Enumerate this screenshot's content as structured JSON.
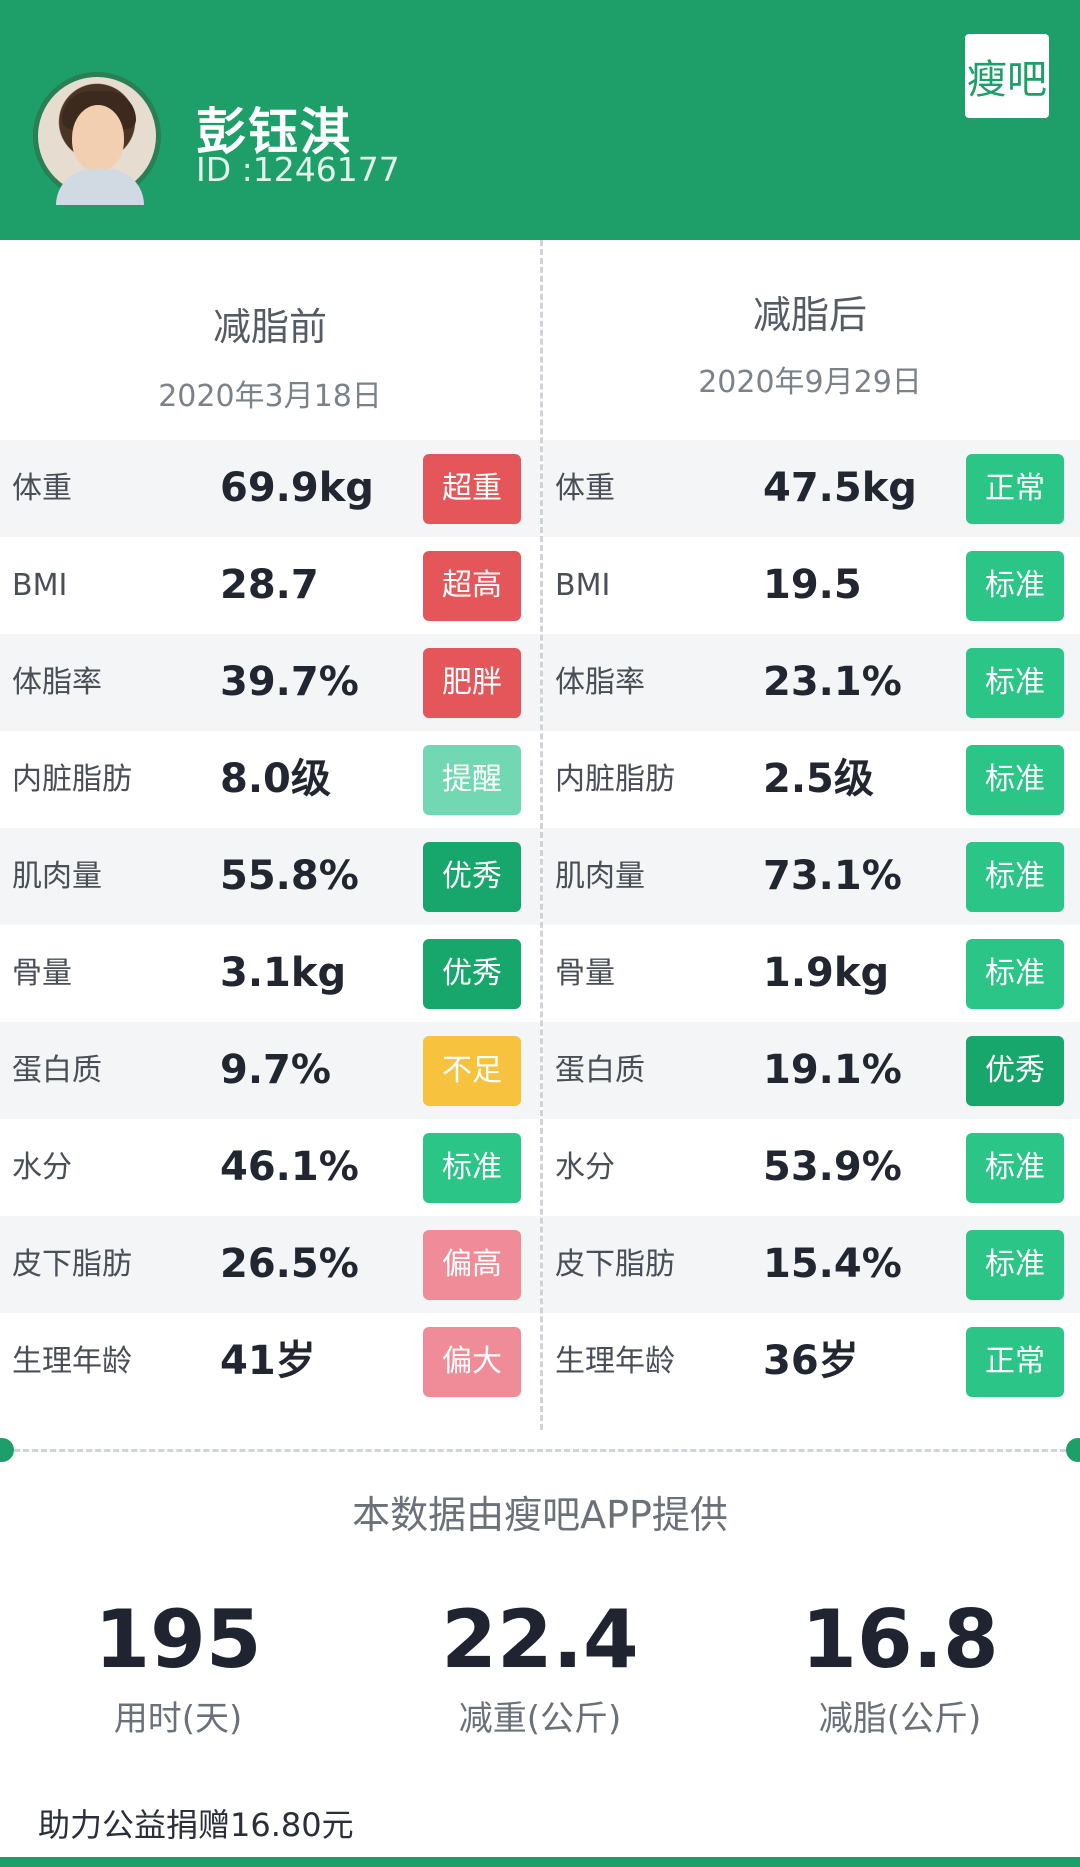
{
  "header": {
    "name": "彭钰淇",
    "user_id": "ID :1246177",
    "logo_text": "瘦吧"
  },
  "before": {
    "title": "减脂前",
    "date": "2020年3月18日",
    "rows": [
      {
        "metric": "体重",
        "value": "69.9kg",
        "badge": "超重",
        "color": "#e5565a"
      },
      {
        "metric": "BMI",
        "value": "28.7",
        "badge": "超高",
        "color": "#e5565a"
      },
      {
        "metric": "体脂率",
        "value": "39.7%",
        "badge": "肥胖",
        "color": "#e5565a"
      },
      {
        "metric": "内脏脂肪",
        "value": "8.0级",
        "badge": "提醒",
        "color": "#72d8b3"
      },
      {
        "metric": "肌肉量",
        "value": "55.8%",
        "badge": "优秀",
        "color": "#17a66c"
      },
      {
        "metric": "骨量",
        "value": "3.1kg",
        "badge": "优秀",
        "color": "#17a66c"
      },
      {
        "metric": "蛋白质",
        "value": "9.7%",
        "badge": "不足",
        "color": "#f7c33e"
      },
      {
        "metric": "水分",
        "value": "46.1%",
        "badge": "标准",
        "color": "#2bc588"
      },
      {
        "metric": "皮下脂肪",
        "value": "26.5%",
        "badge": "偏高",
        "color": "#f08c97"
      },
      {
        "metric": "生理年龄",
        "value": "41岁",
        "badge": "偏大",
        "color": "#f08c97"
      }
    ]
  },
  "after": {
    "title": "减脂后",
    "date": "2020年9月29日",
    "rows": [
      {
        "metric": "体重",
        "value": "47.5kg",
        "badge": "正常",
        "color": "#2bc588"
      },
      {
        "metric": "BMI",
        "value": "19.5",
        "badge": "标准",
        "color": "#2bc588"
      },
      {
        "metric": "体脂率",
        "value": "23.1%",
        "badge": "标准",
        "color": "#2bc588"
      },
      {
        "metric": "内脏脂肪",
        "value": "2.5级",
        "badge": "标准",
        "color": "#2bc588"
      },
      {
        "metric": "肌肉量",
        "value": "73.1%",
        "badge": "标准",
        "color": "#2bc588"
      },
      {
        "metric": "骨量",
        "value": "1.9kg",
        "badge": "标准",
        "color": "#2bc588"
      },
      {
        "metric": "蛋白质",
        "value": "19.1%",
        "badge": "优秀",
        "color": "#17a66c"
      },
      {
        "metric": "水分",
        "value": "53.9%",
        "badge": "标准",
        "color": "#2bc588"
      },
      {
        "metric": "皮下脂肪",
        "value": "15.4%",
        "badge": "标准",
        "color": "#2bc588"
      },
      {
        "metric": "生理年龄",
        "value": "36岁",
        "badge": "正常",
        "color": "#2bc588"
      }
    ]
  },
  "source_text": "本数据由瘦吧APP提供",
  "stats": [
    {
      "value": "195",
      "label": "用时(天)"
    },
    {
      "value": "22.4",
      "label": "减重(公斤)"
    },
    {
      "value": "16.8",
      "label": "减脂(公斤)"
    }
  ],
  "donation": "助力公益捐赠16.80元"
}
